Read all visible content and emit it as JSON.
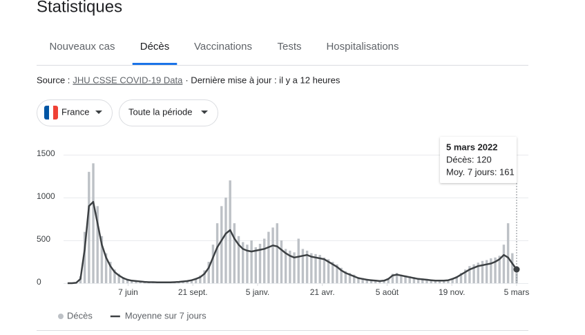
{
  "header": {
    "title": "Statistiques"
  },
  "tabs": {
    "items": [
      "Nouveaux cas",
      "Décès",
      "Vaccinations",
      "Tests",
      "Hospitalisations"
    ],
    "active": 1
  },
  "source": {
    "label": "Source :",
    "link": "JHU CSSE COVID-19 Data",
    "updated": "· Dernière mise à jour : il y a 12 heures"
  },
  "filters": {
    "region": "France",
    "period": "Toute la période"
  },
  "tooltip": {
    "title": "5 mars 2022",
    "lines": [
      "Décès: 120",
      "Moy. 7 jours: 161"
    ]
  },
  "chart_data": {
    "type": "bar",
    "x": [
      1,
      8,
      15,
      22,
      29,
      36,
      43,
      50,
      57,
      64,
      71,
      78,
      85,
      92,
      99,
      106,
      113,
      120,
      127,
      134,
      141,
      148,
      155,
      162,
      169,
      176,
      183,
      190,
      197,
      204,
      211,
      218,
      225,
      232,
      239,
      246,
      253,
      260,
      267,
      274,
      281,
      288,
      295,
      302,
      309,
      316,
      323,
      330,
      337,
      344,
      351,
      358,
      365,
      372,
      379,
      386,
      393,
      400,
      407,
      414,
      421,
      428,
      435,
      442,
      449,
      456,
      463,
      470,
      477,
      484,
      491,
      498,
      505,
      512,
      519,
      526,
      533,
      540,
      547,
      554,
      561,
      568,
      575,
      582,
      589,
      596,
      603,
      610,
      617,
      624,
      631,
      638,
      645,
      652,
      659,
      666,
      673,
      680,
      687,
      694,
      701,
      708,
      715,
      722,
      729,
      736
    ],
    "series": [
      {
        "name": "Décès",
        "type": "bar",
        "color": "#bdc1c6",
        "values": [
          0,
          0,
          10,
          80,
          600,
          1300,
          1400,
          900,
          550,
          350,
          250,
          160,
          110,
          70,
          50,
          35,
          30,
          25,
          18,
          15,
          14,
          12,
          12,
          12,
          12,
          15,
          18,
          25,
          30,
          40,
          60,
          90,
          150,
          250,
          450,
          700,
          900,
          1000,
          1200,
          700,
          550,
          480,
          450,
          500,
          420,
          460,
          520,
          600,
          650,
          700,
          500,
          400,
          380,
          360,
          520,
          400,
          380,
          350,
          340,
          330,
          300,
          280,
          250,
          220,
          180,
          140,
          120,
          100,
          70,
          60,
          50,
          45,
          40,
          30,
          35,
          60,
          110,
          120,
          100,
          90,
          80,
          70,
          60,
          55,
          50,
          40,
          35,
          35,
          35,
          40,
          60,
          80,
          120,
          160,
          200,
          220,
          240,
          260,
          270,
          290,
          300,
          320,
          450,
          700,
          350,
          120
        ]
      },
      {
        "name": "Moyenne sur 7 jours",
        "type": "line",
        "color": "#3c4043",
        "values": [
          0,
          0,
          5,
          50,
          400,
          900,
          950,
          700,
          450,
          300,
          200,
          130,
          90,
          60,
          40,
          30,
          25,
          20,
          15,
          12,
          12,
          10,
          10,
          10,
          10,
          12,
          15,
          20,
          25,
          35,
          50,
          70,
          110,
          180,
          300,
          420,
          500,
          580,
          620,
          520,
          450,
          400,
          380,
          370,
          380,
          390,
          400,
          420,
          440,
          430,
          390,
          350,
          320,
          300,
          310,
          320,
          330,
          310,
          300,
          290,
          280,
          250,
          220,
          190,
          150,
          120,
          100,
          80,
          60,
          50,
          40,
          35,
          30,
          25,
          30,
          50,
          90,
          100,
          90,
          80,
          70,
          60,
          50,
          45,
          40,
          35,
          30,
          30,
          30,
          35,
          50,
          70,
          100,
          130,
          160,
          180,
          200,
          210,
          220,
          230,
          250,
          280,
          330,
          300,
          230,
          161
        ]
      }
    ],
    "xlim": [
      0,
      736
    ],
    "xticks": [
      {
        "value": 100,
        "label": "7 juin"
      },
      {
        "value": 206,
        "label": "21 sept."
      },
      {
        "value": 312,
        "label": "5 janv."
      },
      {
        "value": 418,
        "label": "21 avr."
      },
      {
        "value": 524,
        "label": "5 août"
      },
      {
        "value": 630,
        "label": "19 nov."
      },
      {
        "value": 736,
        "label": "5 mars"
      }
    ],
    "ylim": [
      0,
      1500
    ],
    "yticks": [
      0,
      500,
      1000,
      1500
    ],
    "grid": true
  }
}
